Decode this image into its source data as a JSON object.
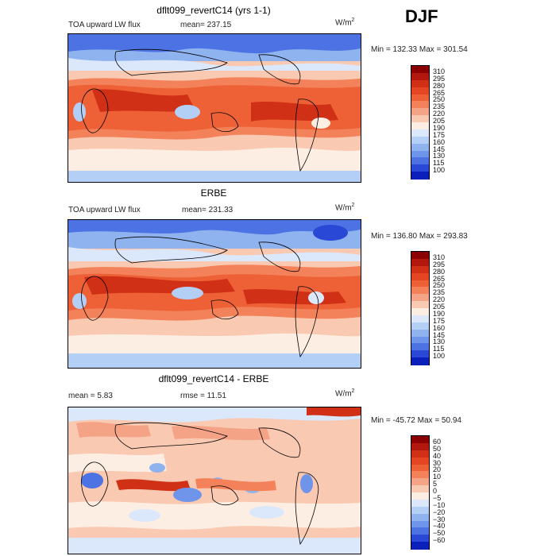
{
  "season": "DJF",
  "panels": [
    {
      "id": "model",
      "title": "dflt099_revertC14 (yrs 1-1)",
      "subtitle": "TOA upward LW flux",
      "mean_text": "mean= 237.15",
      "units_base": "W/m",
      "units_exp": "2",
      "minmax": "Min = 132.33 Max = 301.54",
      "colorbar": {
        "labels": [
          "310",
          "295",
          "280",
          "265",
          "250",
          "235",
          "220",
          "205",
          "190",
          "175",
          "160",
          "145",
          "130",
          "115",
          "100"
        ],
        "colors": [
          "#8b0000",
          "#b2180e",
          "#d03015",
          "#e44522",
          "#ee6136",
          "#f3815a",
          "#f5a386",
          "#f9c9b2",
          "#fdeee3",
          "#dbe8fb",
          "#b4cff6",
          "#8fb3ef",
          "#6f95ea",
          "#4c72e3",
          "#2a48d6",
          "#0b1fbb"
        ]
      }
    },
    {
      "id": "obs",
      "title": "ERBE",
      "subtitle": "TOA upward LW flux",
      "mean_text": "mean= 231.33",
      "units_base": "W/m",
      "units_exp": "2",
      "minmax": "Min = 136.80 Max = 293.83",
      "colorbar": {
        "labels": [
          "310",
          "295",
          "280",
          "265",
          "250",
          "235",
          "220",
          "205",
          "190",
          "175",
          "160",
          "145",
          "130",
          "115",
          "100"
        ],
        "colors": [
          "#8b0000",
          "#b2180e",
          "#d03015",
          "#e44522",
          "#ee6136",
          "#f3815a",
          "#f5a386",
          "#f9c9b2",
          "#fdeee3",
          "#dbe8fb",
          "#b4cff6",
          "#8fb3ef",
          "#6f95ea",
          "#4c72e3",
          "#2a48d6",
          "#0b1fbb"
        ]
      }
    },
    {
      "id": "diff",
      "title": "dflt099_revertC14 - ERBE",
      "mean_text": "mean =   5.83",
      "rmse_text": "rmse =  11.51",
      "units_base": "W/m",
      "units_exp": "2",
      "minmax": "Min = -45.72 Max =  50.94",
      "colorbar": {
        "labels": [
          "60",
          "50",
          "40",
          "30",
          "20",
          "10",
          "5",
          "0",
          "−5",
          "−10",
          "−20",
          "−30",
          "−40",
          "−50",
          "−60"
        ],
        "colors": [
          "#8b0000",
          "#b2180e",
          "#d03015",
          "#e44522",
          "#ee6136",
          "#f3815a",
          "#f5a386",
          "#f9c9b2",
          "#fdeee3",
          "#dbe8fb",
          "#b4cff6",
          "#8fb3ef",
          "#6f95ea",
          "#4c72e3",
          "#2a48d6",
          "#0b1fbb"
        ]
      }
    }
  ],
  "map_colors": {
    "polar_blue": "#4c72e3",
    "mid_blue": "#8fb3ef",
    "pale_blue": "#dbe8fb",
    "pale": "#fdeee3",
    "salmon": "#f5a386",
    "orange": "#ee6136",
    "red": "#d03015",
    "dark_red": "#b2180e"
  }
}
